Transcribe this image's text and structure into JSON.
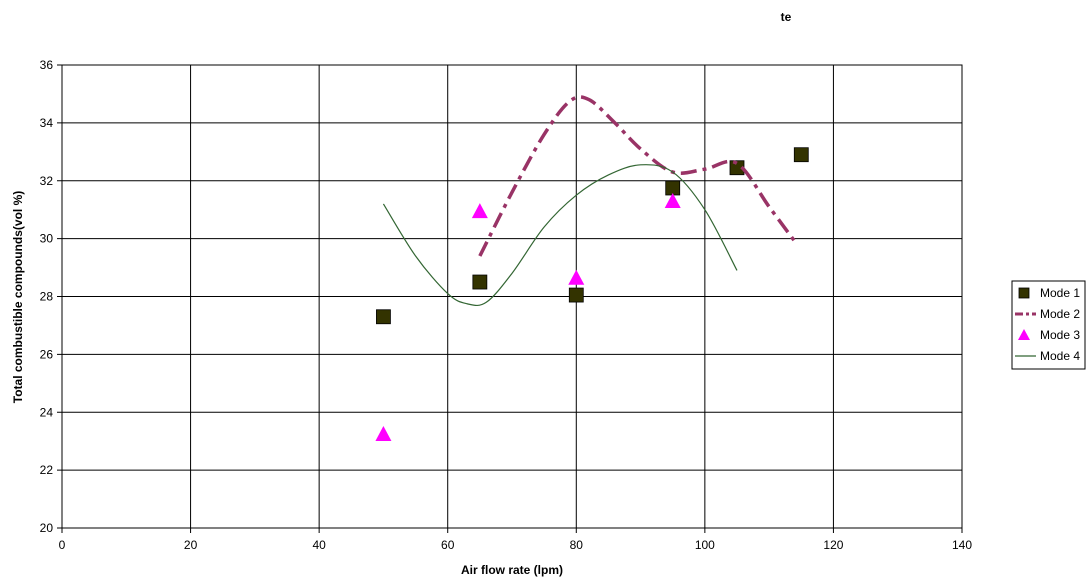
{
  "chart_data": {
    "type": "scatter",
    "title": "te",
    "xlabel": "Air flow rate (lpm)",
    "ylabel": "Total combustible compounds(vol %)",
    "xlim": [
      0,
      140
    ],
    "ylim": [
      20,
      36
    ],
    "xticks": [
      0,
      20,
      40,
      60,
      80,
      100,
      120,
      140
    ],
    "yticks": [
      20,
      22,
      24,
      26,
      28,
      30,
      32,
      34,
      36
    ],
    "grid": true,
    "legend_position": "right",
    "series": [
      {
        "name": "Mode 1",
        "marker": "square",
        "line": "none",
        "color": "#333300",
        "x": [
          50,
          65,
          80,
          95,
          105,
          115
        ],
        "y": [
          27.3,
          28.5,
          28.05,
          31.75,
          32.45,
          32.9
        ]
      },
      {
        "name": "Mode 2",
        "marker": "none",
        "line": "dash-dot",
        "color": "#993366",
        "x": [
          65,
          70,
          75,
          79,
          82,
          86,
          90,
          95,
          100,
          105,
          110,
          114
        ],
        "y": [
          29.4,
          31.6,
          33.6,
          34.75,
          34.8,
          34.0,
          33.1,
          32.3,
          32.4,
          32.6,
          31.1,
          29.9
        ]
      },
      {
        "name": "Mode 3",
        "marker": "triangle",
        "line": "none",
        "color": "#ff00ff",
        "x": [
          50,
          65,
          80,
          95
        ],
        "y": [
          23.25,
          30.95,
          28.65,
          31.3
        ]
      },
      {
        "name": "Mode 4",
        "marker": "none",
        "line": "solid",
        "color": "#336633",
        "x": [
          50,
          55,
          60,
          63,
          66,
          70,
          75,
          80,
          85,
          90,
          95,
          100,
          105
        ],
        "y": [
          31.2,
          29.4,
          28.1,
          27.75,
          27.8,
          28.8,
          30.4,
          31.5,
          32.2,
          32.55,
          32.3,
          31.0,
          28.9
        ]
      }
    ]
  }
}
